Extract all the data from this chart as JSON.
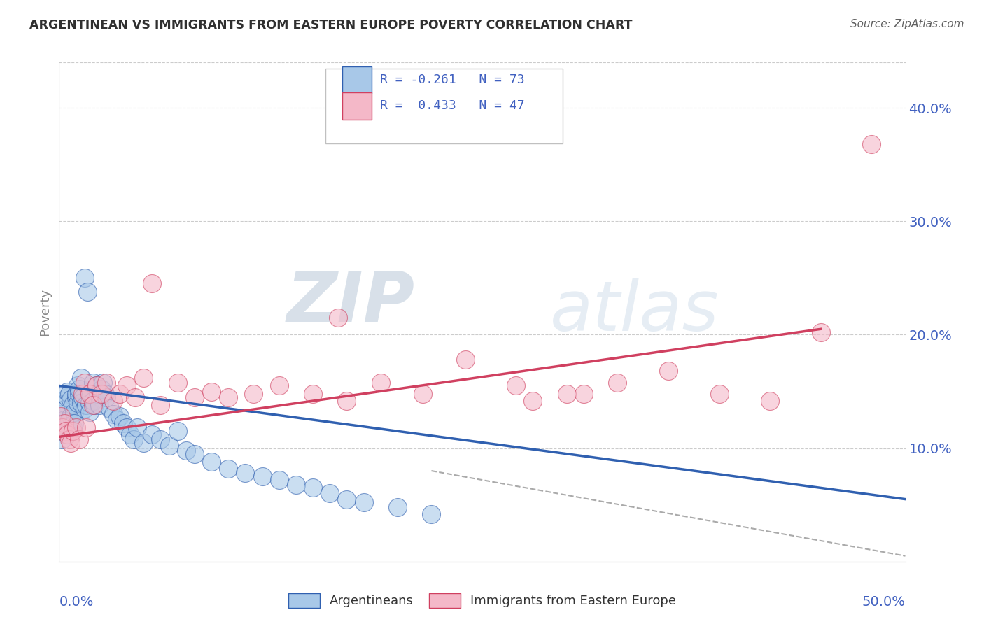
{
  "title": "ARGENTINEAN VS IMMIGRANTS FROM EASTERN EUROPE POVERTY CORRELATION CHART",
  "source": "Source: ZipAtlas.com",
  "ylabel": "Poverty",
  "xlim": [
    0,
    0.5
  ],
  "ylim": [
    0,
    0.44
  ],
  "yticks": [
    0.0,
    0.1,
    0.2,
    0.3,
    0.4
  ],
  "ytick_labels": [
    "",
    "10.0%",
    "20.0%",
    "30.0%",
    "40.0%"
  ],
  "r1": -0.261,
  "n1": 73,
  "r2": 0.433,
  "n2": 47,
  "color_blue": "#a8c8e8",
  "color_pink": "#f4b8c8",
  "color_blue_line": "#3060b0",
  "color_pink_line": "#d04060",
  "color_text_axis": "#4060c0",
  "color_text_title": "#303030",
  "color_source": "#606060",
  "background": "#ffffff",
  "watermark_zip": "ZIP",
  "watermark_atlas": "atlas",
  "legend_label1": "Argentineans",
  "legend_label2": "Immigrants from Eastern Europe",
  "blue_scatter_x": [
    0.001,
    0.001,
    0.002,
    0.002,
    0.003,
    0.003,
    0.004,
    0.004,
    0.005,
    0.005,
    0.005,
    0.006,
    0.006,
    0.007,
    0.007,
    0.008,
    0.008,
    0.009,
    0.009,
    0.01,
    0.01,
    0.011,
    0.011,
    0.012,
    0.012,
    0.013,
    0.013,
    0.014,
    0.015,
    0.015,
    0.016,
    0.017,
    0.018,
    0.018,
    0.019,
    0.02,
    0.02,
    0.021,
    0.022,
    0.023,
    0.024,
    0.025,
    0.026,
    0.027,
    0.028,
    0.03,
    0.032,
    0.034,
    0.036,
    0.038,
    0.04,
    0.042,
    0.044,
    0.046,
    0.05,
    0.055,
    0.06,
    0.065,
    0.07,
    0.075,
    0.08,
    0.09,
    0.1,
    0.11,
    0.12,
    0.13,
    0.14,
    0.15,
    0.16,
    0.17,
    0.18,
    0.2,
    0.22
  ],
  "blue_scatter_y": [
    0.13,
    0.115,
    0.12,
    0.108,
    0.125,
    0.14,
    0.135,
    0.118,
    0.145,
    0.15,
    0.112,
    0.148,
    0.125,
    0.143,
    0.128,
    0.138,
    0.118,
    0.132,
    0.122,
    0.145,
    0.148,
    0.155,
    0.14,
    0.148,
    0.152,
    0.14,
    0.162,
    0.145,
    0.25,
    0.135,
    0.138,
    0.238,
    0.14,
    0.132,
    0.148,
    0.158,
    0.142,
    0.138,
    0.155,
    0.148,
    0.138,
    0.152,
    0.158,
    0.148,
    0.145,
    0.135,
    0.13,
    0.125,
    0.128,
    0.122,
    0.118,
    0.112,
    0.108,
    0.118,
    0.105,
    0.112,
    0.108,
    0.102,
    0.115,
    0.098,
    0.095,
    0.088,
    0.082,
    0.078,
    0.075,
    0.072,
    0.068,
    0.065,
    0.06,
    0.055,
    0.052,
    0.048,
    0.042
  ],
  "pink_scatter_x": [
    0.001,
    0.002,
    0.003,
    0.004,
    0.005,
    0.006,
    0.007,
    0.008,
    0.01,
    0.012,
    0.014,
    0.015,
    0.016,
    0.018,
    0.02,
    0.022,
    0.025,
    0.028,
    0.032,
    0.036,
    0.04,
    0.045,
    0.05,
    0.055,
    0.06,
    0.07,
    0.08,
    0.09,
    0.1,
    0.115,
    0.13,
    0.15,
    0.17,
    0.19,
    0.215,
    0.24,
    0.27,
    0.3,
    0.33,
    0.36,
    0.39,
    0.42,
    0.45,
    0.165,
    0.28,
    0.31,
    0.48
  ],
  "pink_scatter_y": [
    0.128,
    0.118,
    0.122,
    0.115,
    0.112,
    0.108,
    0.105,
    0.115,
    0.118,
    0.108,
    0.148,
    0.158,
    0.118,
    0.148,
    0.138,
    0.155,
    0.148,
    0.158,
    0.142,
    0.148,
    0.155,
    0.145,
    0.162,
    0.245,
    0.138,
    0.158,
    0.145,
    0.15,
    0.145,
    0.148,
    0.155,
    0.148,
    0.142,
    0.158,
    0.148,
    0.178,
    0.155,
    0.148,
    0.158,
    0.168,
    0.148,
    0.142,
    0.202,
    0.215,
    0.142,
    0.148,
    0.368
  ],
  "blue_line_x": [
    0.0,
    0.5
  ],
  "blue_line_y": [
    0.155,
    0.055
  ],
  "pink_line_x": [
    0.0,
    0.45
  ],
  "pink_line_y": [
    0.11,
    0.205
  ],
  "dash_line_x": [
    0.22,
    0.5
  ],
  "dash_line_y": [
    0.08,
    0.005
  ]
}
